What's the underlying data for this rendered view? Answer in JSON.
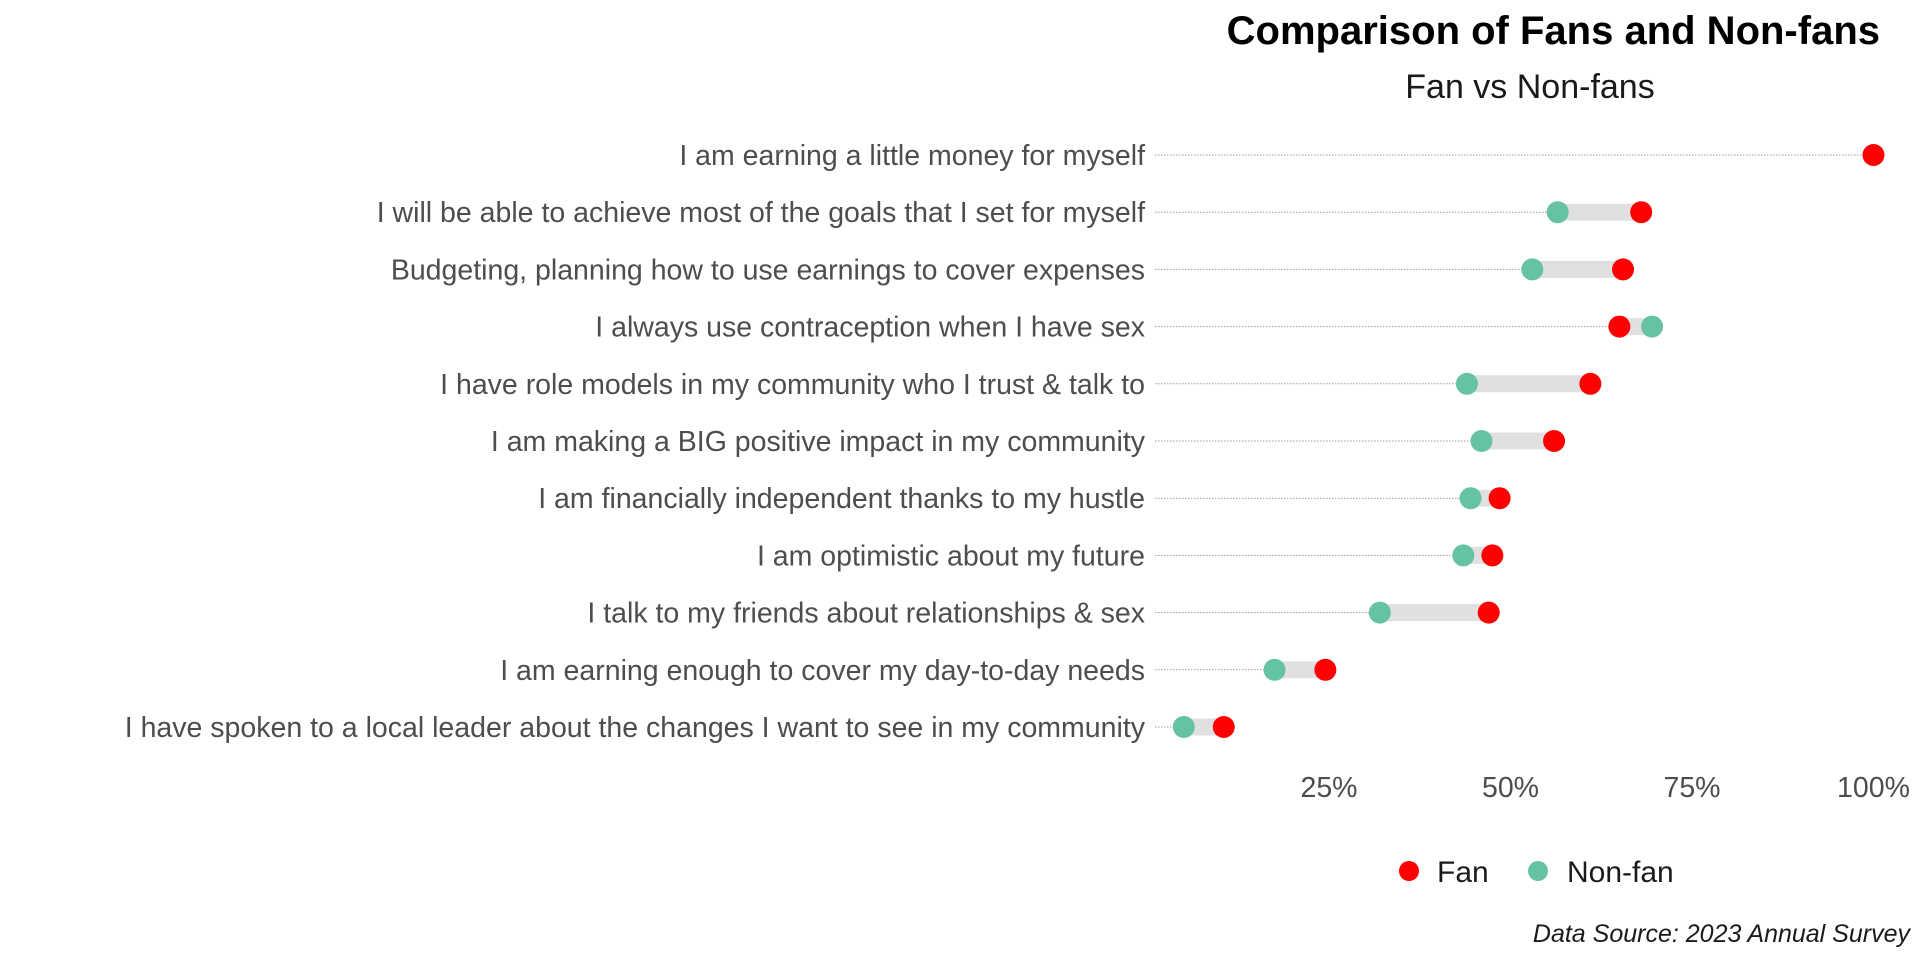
{
  "chart_data": {
    "type": "dumbbell",
    "title": "Comparison of Fans and Non-fans",
    "subtitle": "Fan vs Non-fans",
    "caption": "Data Source: 2023 Annual Survey",
    "x_ticks": [
      "25%",
      "50%",
      "75%",
      "100%"
    ],
    "x_tick_values": [
      25,
      50,
      75,
      100
    ],
    "xlim": [
      0,
      100
    ],
    "categories": [
      "I am earning a little money for myself",
      "I will be able to achieve most of the goals that I set for myself",
      "Budgeting, planning how to use earnings to cover expenses",
      "I always use contraception when I have sex",
      "I have role models in my community who I trust & talk to",
      "I am making a BIG positive impact in my community",
      "I am financially independent thanks to my hustle",
      "I am optimistic about my future",
      "I talk to my friends about relationships & sex",
      "I am earning enough to cover my day-to-day needs",
      "I have spoken to a local leader about the changes I want to see in my community"
    ],
    "series": [
      {
        "name": "Fan",
        "color": "#ff0000",
        "values": [
          100,
          68,
          65.5,
          65,
          61,
          56,
          48.5,
          47.5,
          47,
          24.5,
          10.5
        ]
      },
      {
        "name": "Non-fan",
        "color": "#66c2a5",
        "values": [
          null,
          56.5,
          53,
          69.5,
          44,
          46,
          44.5,
          43.5,
          32,
          17.5,
          5
        ]
      }
    ],
    "legend": {
      "position": "bottom",
      "items": [
        "Fan",
        "Non-fan"
      ]
    },
    "grid": false,
    "colors": {
      "fan": "#ff0000",
      "non_fan": "#66c2a5",
      "segment": "#e0e0e0",
      "guide": "#9a9a9a"
    }
  }
}
